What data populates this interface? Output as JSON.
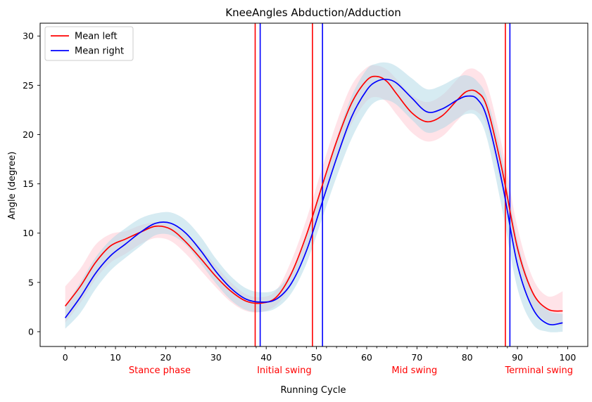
{
  "chart_data": {
    "type": "line",
    "title": "KneeAngles Abduction/Adduction",
    "xlabel": "Running Cycle",
    "ylabel": "Angle (degree)",
    "xlim": [
      -5,
      104
    ],
    "ylim": [
      -1.5,
      31.3
    ],
    "xticks": [
      0,
      10,
      20,
      30,
      40,
      50,
      60,
      70,
      80,
      90,
      100
    ],
    "yticks": [
      0,
      5,
      10,
      15,
      20,
      25,
      30
    ],
    "grid": false,
    "legend_position": "upper-left",
    "x": [
      0,
      3,
      6,
      9,
      12,
      15,
      18,
      21,
      24,
      27,
      30,
      33,
      36,
      39,
      42,
      45,
      48,
      51,
      54,
      57,
      60,
      62,
      64,
      66,
      69,
      72,
      75,
      78,
      80,
      82,
      84,
      87,
      90,
      93,
      96,
      99
    ],
    "series": [
      {
        "name": "Mean left",
        "color": "#ff0000",
        "band_color": "#ffc0cb",
        "values": [
          2.6,
          4.6,
          7.0,
          8.7,
          9.4,
          10.1,
          10.7,
          10.4,
          9.1,
          7.4,
          5.6,
          4.1,
          3.1,
          2.9,
          3.5,
          5.9,
          9.8,
          14.6,
          19.3,
          23.2,
          25.5,
          25.9,
          25.4,
          24.1,
          22.2,
          21.3,
          21.9,
          23.5,
          24.4,
          24.3,
          22.7,
          16.3,
          8.5,
          4.0,
          2.3,
          2.1
        ],
        "band_lower": [
          0.9,
          2.9,
          5.3,
          7.0,
          7.9,
          8.9,
          9.5,
          9.2,
          7.9,
          6.2,
          4.5,
          3.0,
          2.1,
          2.0,
          2.7,
          4.7,
          8.3,
          12.9,
          17.4,
          21.1,
          23.4,
          23.8,
          23.3,
          22.0,
          20.2,
          19.3,
          19.8,
          21.4,
          22.4,
          22.3,
          20.7,
          14.2,
          6.7,
          2.5,
          1.0,
          0.6
        ],
        "band_upper": [
          4.6,
          6.4,
          8.8,
          9.9,
          10.2,
          10.8,
          11.1,
          10.9,
          10.0,
          8.5,
          6.7,
          5.0,
          3.8,
          3.5,
          4.2,
          7.2,
          11.4,
          16.4,
          21.2,
          25.0,
          26.8,
          27.0,
          26.6,
          25.6,
          24.0,
          23.3,
          24.0,
          25.6,
          26.6,
          26.5,
          25.0,
          18.7,
          10.6,
          5.5,
          3.6,
          4.1
        ]
      },
      {
        "name": "Mean right",
        "color": "#0000ff",
        "band_color": "#add8e6",
        "values": [
          1.4,
          3.5,
          5.9,
          7.7,
          8.9,
          10.1,
          11.0,
          11.0,
          10.0,
          8.2,
          6.1,
          4.4,
          3.3,
          3.0,
          3.3,
          4.9,
          8.2,
          12.9,
          17.6,
          21.8,
          24.5,
          25.4,
          25.6,
          25.2,
          23.7,
          22.3,
          22.6,
          23.5,
          23.9,
          23.6,
          21.6,
          15.0,
          6.8,
          2.4,
          0.8,
          0.9
        ],
        "band_lower": [
          0.3,
          1.9,
          4.3,
          6.2,
          7.5,
          8.7,
          9.8,
          9.8,
          8.8,
          6.9,
          4.9,
          3.2,
          2.2,
          2.0,
          2.4,
          3.9,
          6.9,
          11.3,
          15.7,
          19.6,
          22.4,
          23.4,
          23.5,
          23.0,
          21.5,
          20.2,
          20.6,
          21.6,
          22.1,
          21.8,
          19.5,
          12.3,
          4.4,
          0.8,
          0.0,
          0.0
        ],
        "band_upper": [
          2.6,
          5.0,
          7.5,
          9.3,
          10.5,
          11.5,
          12.0,
          12.1,
          11.3,
          9.6,
          7.4,
          5.6,
          4.4,
          4.0,
          4.3,
          6.1,
          9.6,
          14.6,
          19.6,
          23.9,
          26.6,
          27.2,
          27.3,
          26.9,
          25.7,
          24.6,
          25.0,
          25.8,
          26.0,
          25.4,
          23.6,
          17.5,
          9.3,
          4.2,
          2.2,
          1.8
        ]
      }
    ],
    "vertical_lines": [
      {
        "x": 37.8,
        "color": "#ff0000"
      },
      {
        "x": 38.8,
        "color": "#0000ff"
      },
      {
        "x": 49.2,
        "color": "#ff0000"
      },
      {
        "x": 51.2,
        "color": "#0000ff"
      },
      {
        "x": 87.6,
        "color": "#ff0000"
      },
      {
        "x": 88.5,
        "color": "#0000ff"
      }
    ],
    "phase_labels": [
      {
        "text": "Stance phase",
        "x": 18.8
      },
      {
        "text": "Initial swing",
        "x": 43.6
      },
      {
        "text": "Mid swing",
        "x": 69.5
      },
      {
        "text": "Terminal swing",
        "x": 94.3
      }
    ],
    "phase_label_color": "#ff0000"
  }
}
